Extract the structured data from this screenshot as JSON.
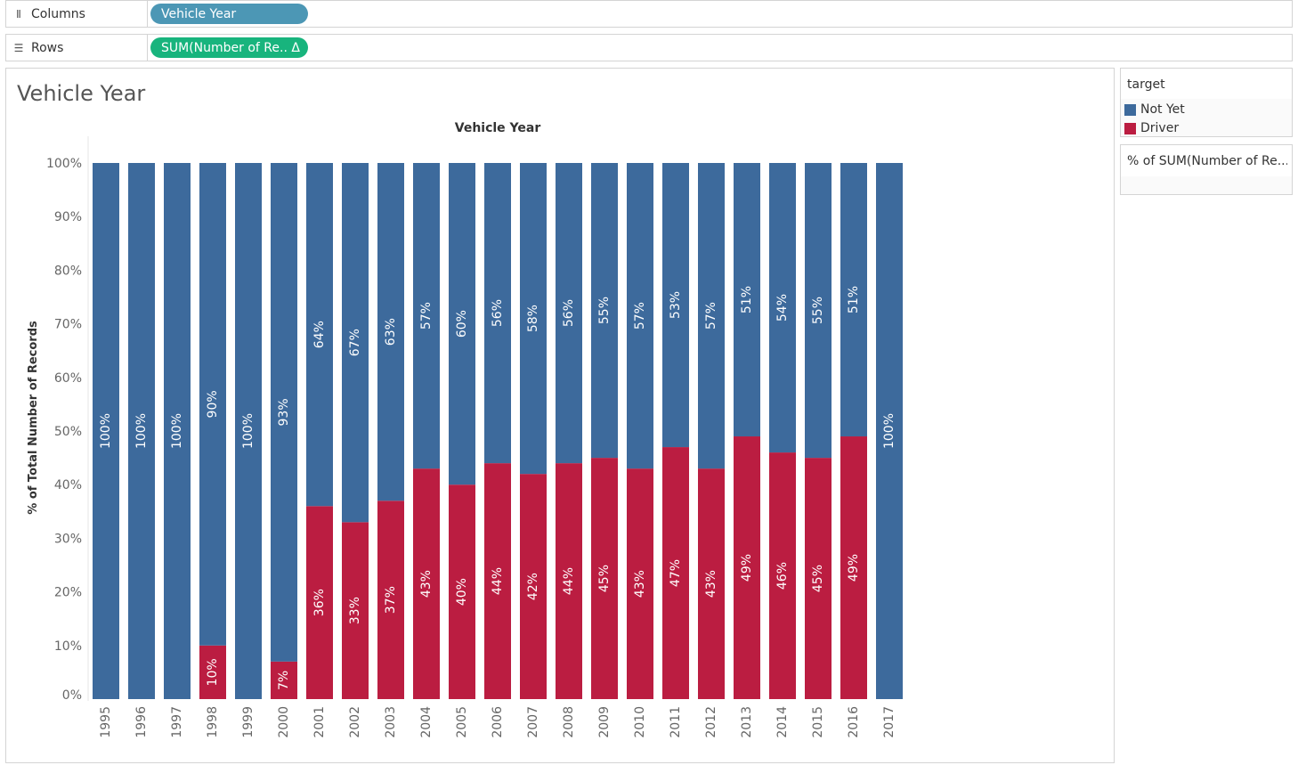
{
  "shelves": {
    "columns": {
      "label": "Columns",
      "icon": "columns-icon",
      "pill": "Vehicle Year"
    },
    "rows": {
      "label": "Rows",
      "icon": "rows-icon",
      "pill": "SUM(Number of Re.. Δ"
    }
  },
  "sheet": {
    "title": "Vehicle Year"
  },
  "legend": {
    "title": "target",
    "items": [
      {
        "label": "Not Yet",
        "color": "#3d6a9c"
      },
      {
        "label": "Driver",
        "color": "#bb1d41"
      }
    ]
  },
  "measure_card": {
    "title": "% of SUM(Number of Re..."
  },
  "chart_data": {
    "type": "bar",
    "stacked": true,
    "title": "Vehicle Year",
    "xlabel": "",
    "ylabel": "% of Total Number of Records",
    "ylim": [
      0,
      100
    ],
    "yticks": [
      "0%",
      "10%",
      "20%",
      "30%",
      "40%",
      "50%",
      "60%",
      "70%",
      "80%",
      "90%",
      "100%"
    ],
    "categories": [
      "1995",
      "1996",
      "1997",
      "1998",
      "1999",
      "2000",
      "2001",
      "2002",
      "2003",
      "2004",
      "2005",
      "2006",
      "2007",
      "2008",
      "2009",
      "2010",
      "2011",
      "2012",
      "2013",
      "2014",
      "2015",
      "2016",
      "2017"
    ],
    "series": [
      {
        "name": "Driver",
        "color": "#bb1d41",
        "values": [
          0,
          0,
          0,
          10,
          0,
          7,
          36,
          33,
          37,
          43,
          40,
          44,
          42,
          44,
          45,
          43,
          47,
          43,
          49,
          46,
          45,
          49,
          0
        ],
        "labels": [
          "",
          "",
          "",
          "10%",
          "",
          "7%",
          "36%",
          "33%",
          "37%",
          "43%",
          "40%",
          "44%",
          "42%",
          "44%",
          "45%",
          "43%",
          "47%",
          "43%",
          "49%",
          "46%",
          "45%",
          "49%",
          ""
        ]
      },
      {
        "name": "Not Yet",
        "color": "#3d6a9c",
        "values": [
          100,
          100,
          100,
          90,
          100,
          93,
          64,
          67,
          63,
          57,
          60,
          56,
          58,
          56,
          55,
          57,
          53,
          57,
          51,
          54,
          55,
          51,
          100
        ],
        "labels": [
          "100%",
          "100%",
          "100%",
          "90%",
          "100%",
          "93%",
          "64%",
          "67%",
          "63%",
          "57%",
          "60%",
          "56%",
          "58%",
          "56%",
          "55%",
          "57%",
          "53%",
          "57%",
          "51%",
          "54%",
          "55%",
          "51%",
          "100%"
        ]
      }
    ]
  }
}
